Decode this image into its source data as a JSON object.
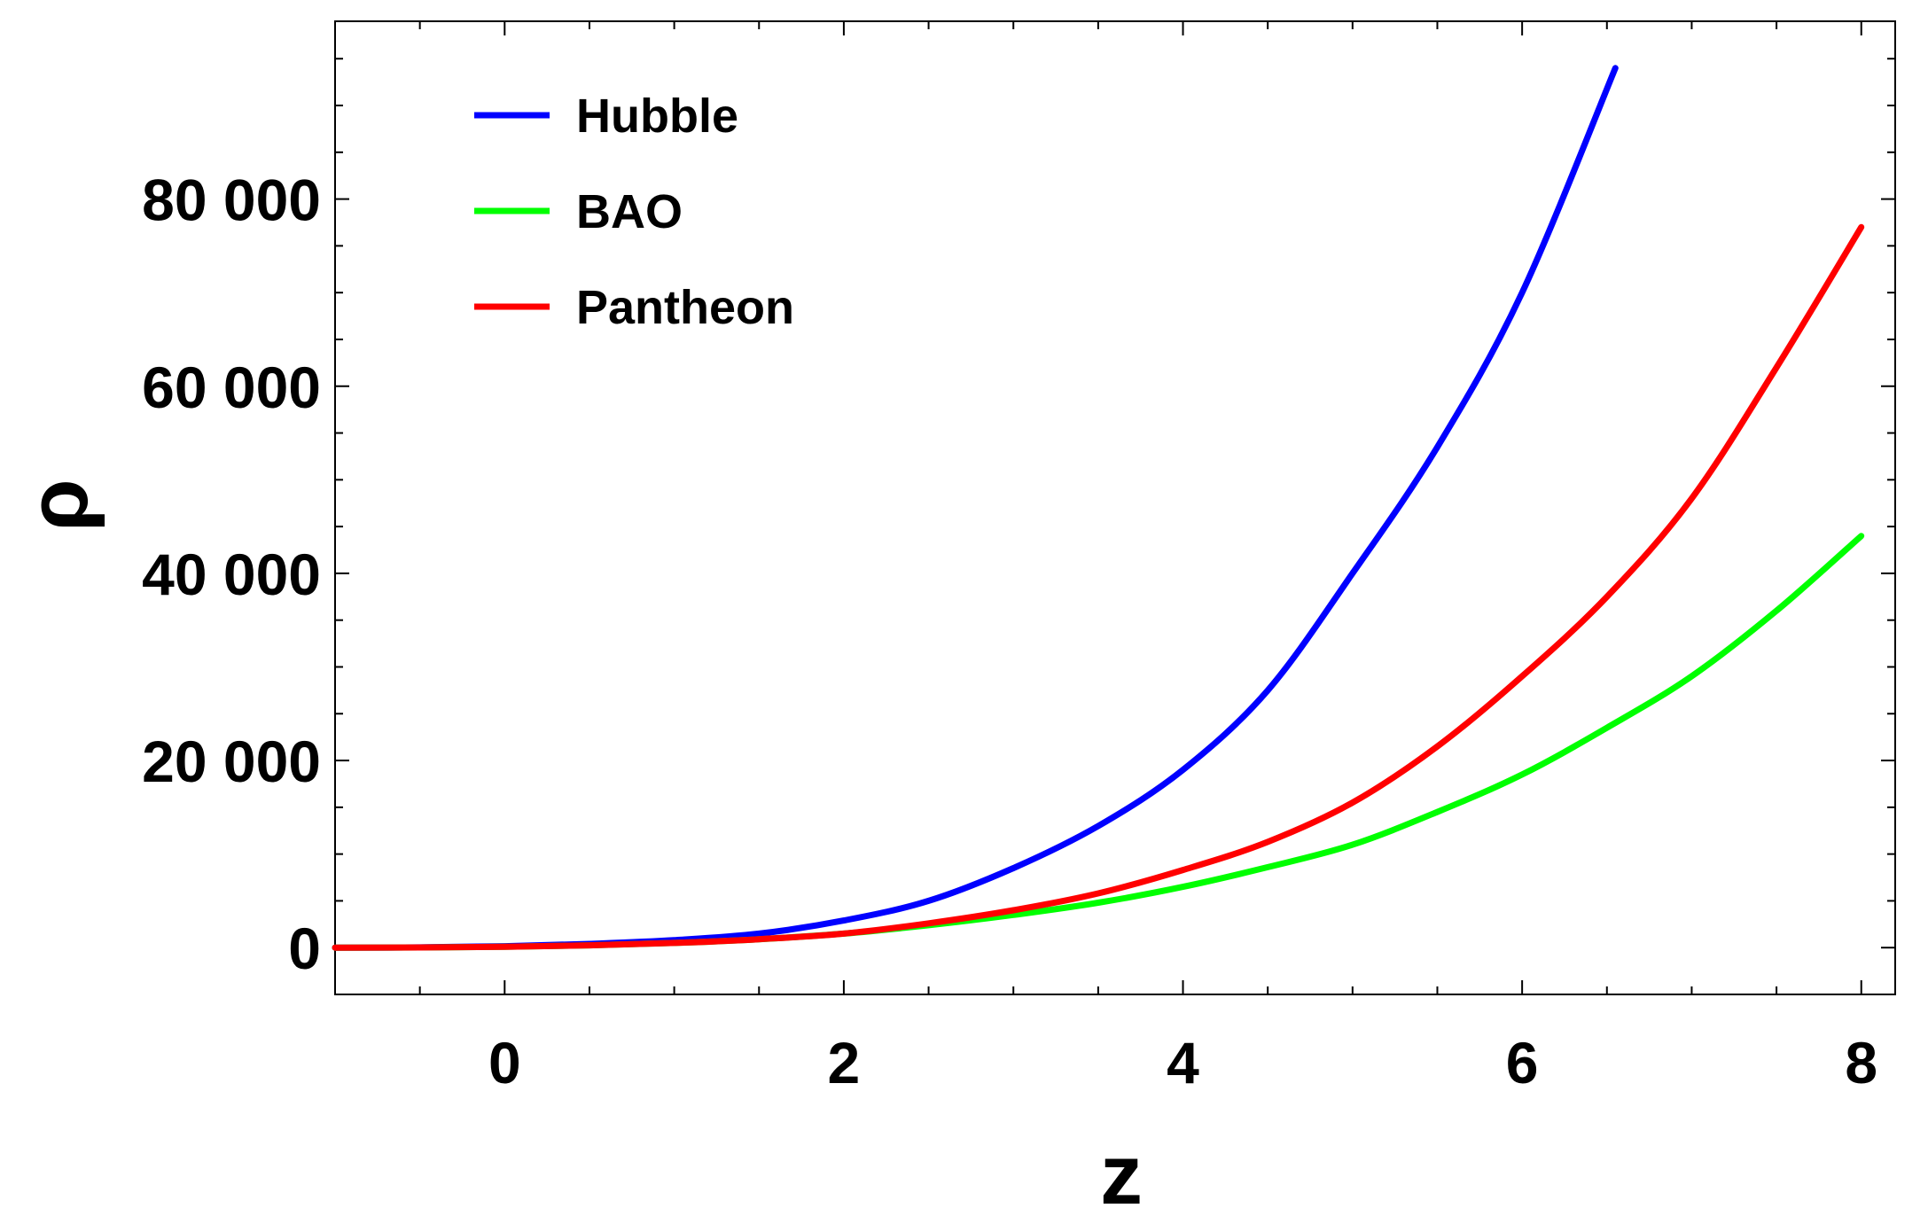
{
  "chart_data": {
    "type": "line",
    "title": "",
    "xlabel": "z",
    "ylabel": "ρ",
    "xlim": [
      -1,
      8.2
    ],
    "ylim": [
      -5000,
      99000
    ],
    "x_ticks": [
      0,
      2,
      4,
      6,
      8
    ],
    "x_tick_labels": [
      "0",
      "2",
      "4",
      "6",
      "8"
    ],
    "y_ticks": [
      0,
      20000,
      40000,
      60000,
      80000
    ],
    "y_tick_labels": [
      "0",
      "20 000",
      "40 000",
      "60 000",
      "80 000"
    ],
    "grid": false,
    "legend_position": "top-left",
    "series": [
      {
        "name": "Hubble",
        "color": "#0000ff",
        "x": [
          -1,
          -0.5,
          0,
          0.5,
          1,
          1.5,
          2,
          2.5,
          3,
          3.5,
          4,
          4.5,
          5,
          5.5,
          6,
          6.55
        ],
        "y": [
          0,
          30,
          150,
          400,
          800,
          1500,
          2900,
          5000,
          8500,
          13000,
          19000,
          27500,
          40000,
          53500,
          70000,
          94000
        ]
      },
      {
        "name": "BAO",
        "color": "#00ff00",
        "x": [
          -1,
          -0.5,
          0,
          0.5,
          1,
          1.5,
          2,
          2.5,
          3,
          3.5,
          4,
          4.5,
          5,
          5.5,
          6,
          6.5,
          7,
          7.5,
          8
        ],
        "y": [
          0,
          20,
          100,
          250,
          500,
          900,
          1500,
          2400,
          3500,
          4800,
          6500,
          8600,
          11000,
          14500,
          18500,
          23500,
          29000,
          36000,
          44000
        ]
      },
      {
        "name": "Pantheon",
        "color": "#ff0000",
        "x": [
          -1,
          -0.5,
          0,
          0.5,
          1,
          1.5,
          2,
          2.5,
          3,
          3.5,
          4,
          4.5,
          5,
          5.5,
          6,
          6.5,
          7,
          7.5,
          8
        ],
        "y": [
          0,
          20,
          100,
          250,
          500,
          900,
          1500,
          2600,
          4000,
          5800,
          8300,
          11300,
          15500,
          21500,
          29000,
          37500,
          48000,
          62000,
          77000
        ]
      }
    ]
  }
}
